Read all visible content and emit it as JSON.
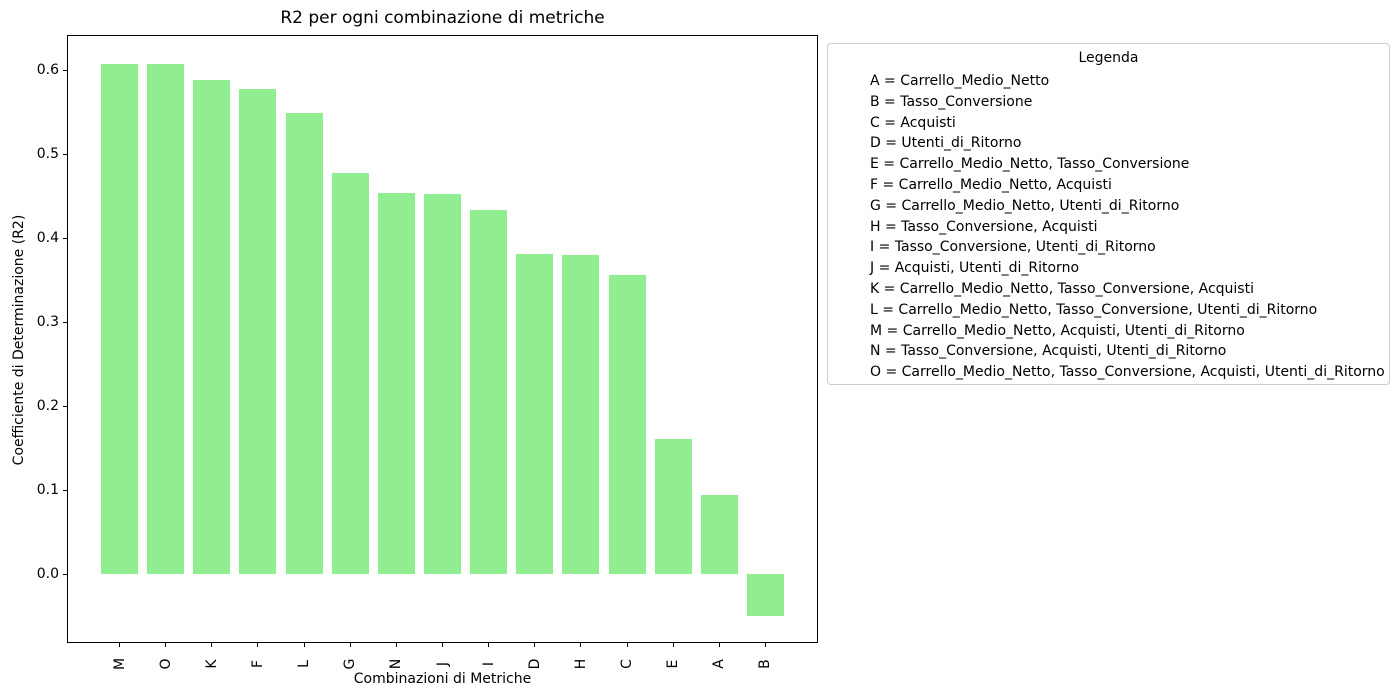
{
  "chart_data": {
    "type": "bar",
    "title": "R2 per ogni combinazione di metriche",
    "xlabel": "Combinazioni di Metriche",
    "ylabel": "Coefficiente di Determinazione (R2)",
    "categories": [
      "M",
      "O",
      "K",
      "F",
      "L",
      "G",
      "N",
      "J",
      "I",
      "D",
      "H",
      "C",
      "E",
      "A",
      "B"
    ],
    "values": [
      0.608,
      0.608,
      0.588,
      0.578,
      0.549,
      0.478,
      0.454,
      0.453,
      0.434,
      0.381,
      0.38,
      0.356,
      0.161,
      0.094,
      -0.05
    ],
    "bar_color": "#90EE90",
    "axis_color": "#000000",
    "ylim": [
      -0.082,
      0.642
    ],
    "yticks": [
      0.0,
      0.1,
      0.2,
      0.3,
      0.4,
      0.5,
      0.6
    ],
    "grid": false,
    "legend": {
      "title": "Legenda",
      "position": "outside-top-right",
      "border_color": "#cccccc",
      "entries": [
        "A = Carrello_Medio_Netto",
        "B = Tasso_Conversione",
        "C = Acquisti",
        "D = Utenti_di_Ritorno",
        "E = Carrello_Medio_Netto, Tasso_Conversione",
        "F = Carrello_Medio_Netto, Acquisti",
        "G = Carrello_Medio_Netto, Utenti_di_Ritorno",
        "H = Tasso_Conversione, Acquisti",
        "I = Tasso_Conversione, Utenti_di_Ritorno",
        "J = Acquisti, Utenti_di_Ritorno",
        "K = Carrello_Medio_Netto, Tasso_Conversione, Acquisti",
        "L = Carrello_Medio_Netto, Tasso_Conversione, Utenti_di_Ritorno",
        "M = Carrello_Medio_Netto, Acquisti, Utenti_di_Ritorno",
        "N = Tasso_Conversione, Acquisti, Utenti_di_Ritorno",
        "O = Carrello_Medio_Netto, Tasso_Conversione, Acquisti, Utenti_di_Ritorno"
      ]
    }
  }
}
